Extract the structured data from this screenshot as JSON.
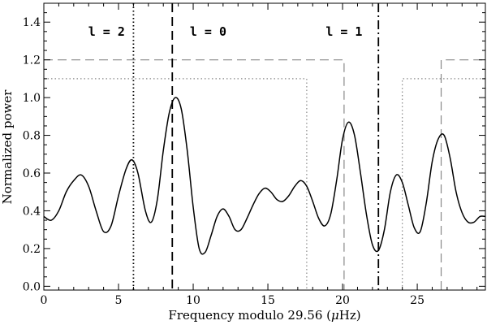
{
  "chart_data": {
    "type": "line",
    "xlabel_prefix": "Frequency modulo 29.56 (",
    "xlabel_unit_greek": "μ",
    "xlabel_unit_rest": "Hz)",
    "ylabel": "Normalized power",
    "xlim": [
      0,
      29.56
    ],
    "ylim": [
      -0.02,
      1.5
    ],
    "x_ticks": [
      0,
      5,
      10,
      15,
      20,
      25
    ],
    "x_tick_labels": [
      "0",
      "5",
      "10",
      "15",
      "20",
      "25"
    ],
    "y_ticks": [
      0.0,
      0.2,
      0.4,
      0.6,
      0.8,
      1.0,
      1.2,
      1.4
    ],
    "y_tick_labels": [
      "0.0",
      "0.2",
      "0.4",
      "0.6",
      "0.8",
      "1.0",
      "1.2",
      "1.4"
    ],
    "series": [
      {
        "style": "solid",
        "color": "#000000",
        "x": [
          0.0,
          0.5,
          1.0,
          1.5,
          2.0,
          2.5,
          3.0,
          3.5,
          4.0,
          4.5,
          5.0,
          5.5,
          5.9,
          6.3,
          6.8,
          7.2,
          7.6,
          8.0,
          8.4,
          8.8,
          9.2,
          9.6,
          10.0,
          10.4,
          10.8,
          11.2,
          11.6,
          12.0,
          12.4,
          12.8,
          13.2,
          13.6,
          14.0,
          14.4,
          14.8,
          15.2,
          15.6,
          16.0,
          16.4,
          16.8,
          17.2,
          17.6,
          18.0,
          18.4,
          18.8,
          19.2,
          19.6,
          20.0,
          20.4,
          20.8,
          21.2,
          21.6,
          22.0,
          22.4,
          22.8,
          23.2,
          23.6,
          24.0,
          24.4,
          24.8,
          25.2,
          25.6,
          26.0,
          26.4,
          26.8,
          27.2,
          27.6,
          28.0,
          28.4,
          28.8,
          29.2,
          29.56
        ],
        "y": [
          0.37,
          0.35,
          0.4,
          0.5,
          0.56,
          0.59,
          0.53,
          0.4,
          0.29,
          0.32,
          0.48,
          0.62,
          0.67,
          0.6,
          0.4,
          0.34,
          0.46,
          0.72,
          0.92,
          1.0,
          0.94,
          0.72,
          0.42,
          0.2,
          0.18,
          0.27,
          0.37,
          0.41,
          0.37,
          0.3,
          0.3,
          0.36,
          0.43,
          0.49,
          0.52,
          0.5,
          0.46,
          0.45,
          0.48,
          0.53,
          0.56,
          0.53,
          0.45,
          0.36,
          0.32,
          0.38,
          0.56,
          0.78,
          0.87,
          0.8,
          0.6,
          0.38,
          0.22,
          0.19,
          0.3,
          0.5,
          0.59,
          0.55,
          0.43,
          0.31,
          0.29,
          0.44,
          0.66,
          0.78,
          0.8,
          0.68,
          0.5,
          0.39,
          0.34,
          0.34,
          0.37,
          0.37
        ]
      }
    ],
    "vertical_lines": [
      {
        "x": 6.0,
        "style": "dotted",
        "color": "#000000",
        "mode": "l = 2"
      },
      {
        "x": 8.6,
        "style": "dashed",
        "color": "#000000",
        "mode": "l = 0"
      },
      {
        "x": 22.4,
        "style": "dashdot",
        "color": "#000000",
        "mode": "l = 1"
      }
    ],
    "windows": [
      {
        "style": "dashed",
        "color": "#888888",
        "level": 1.2,
        "ranges": [
          [
            0,
            20.1
          ],
          [
            26.6,
            29.56
          ]
        ]
      },
      {
        "style": "dotted",
        "color": "#888888",
        "level": 1.1,
        "ranges": [
          [
            0,
            17.6
          ],
          [
            24.0,
            29.56
          ]
        ]
      }
    ],
    "annotations": [
      {
        "text": "l = 2",
        "x": 4.2,
        "y": 1.35
      },
      {
        "text": "l = 0",
        "x": 11.0,
        "y": 1.35
      },
      {
        "text": "l = 1",
        "x": 20.1,
        "y": 1.35
      }
    ],
    "grid": false,
    "legend": "none"
  }
}
